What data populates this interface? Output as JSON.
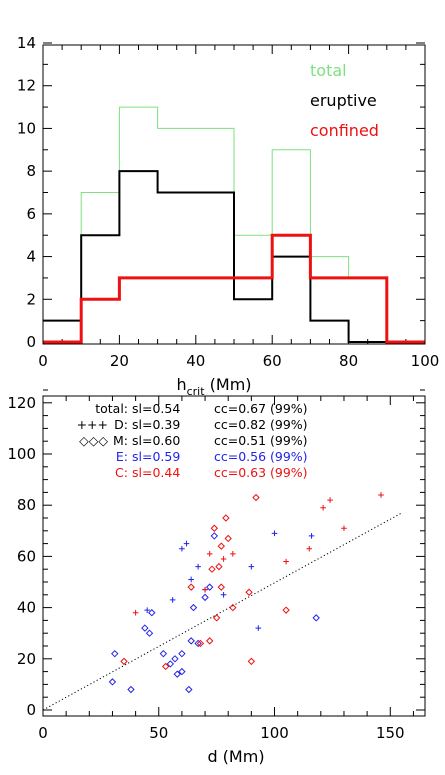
{
  "chart_data": [
    {
      "type": "bar",
      "histogram": true,
      "title": "",
      "xlabel": "h",
      "xlabel_sub": "crit",
      "xlabel_unit": "(Mm)",
      "ylabel": "",
      "xlim": [
        0,
        100
      ],
      "ylim": [
        0,
        14
      ],
      "xticks": [
        "0",
        "20",
        "40",
        "60",
        "80",
        "100"
      ],
      "yticks": [
        "0",
        "2",
        "4",
        "6",
        "8",
        "10",
        "12",
        "14"
      ],
      "bin_edges": [
        0,
        10,
        20,
        30,
        40,
        50,
        60,
        70,
        80,
        90,
        100
      ],
      "legend_position": "top-right",
      "series": [
        {
          "name": "total",
          "color": "#7ee07e",
          "values": [
            1,
            7,
            11,
            10,
            10,
            5,
            9,
            4,
            3,
            0
          ]
        },
        {
          "name": "eruptive",
          "color": "#000000",
          "values": [
            1,
            5,
            8,
            7,
            7,
            2,
            4,
            1,
            0,
            0
          ]
        },
        {
          "name": "confined",
          "color": "#ee1111",
          "values": [
            0,
            2,
            3,
            3,
            3,
            3,
            5,
            3,
            3,
            0
          ]
        }
      ]
    },
    {
      "type": "scatter",
      "title": "",
      "xlabel": "d (Mm)",
      "ylabel": "",
      "xlim": [
        0,
        165
      ],
      "ylim": [
        0,
        125
      ],
      "xticks": [
        "0",
        "50",
        "100",
        "150"
      ],
      "yticks": [
        "0",
        "20",
        "40",
        "60",
        "80",
        "100",
        "120"
      ],
      "legend_position": "top-left",
      "legend": [
        {
          "label": "total:",
          "symbol": "",
          "sl": "sl=0.54",
          "cc": "cc=0.67 (99%)",
          "color": "#000000"
        },
        {
          "label": "D:",
          "symbol": "+++",
          "sl": "sl=0.39",
          "cc": "cc=0.82 (99%)",
          "color": "#000000"
        },
        {
          "label": "M:",
          "symbol": "◇◇◇",
          "sl": "sl=0.60",
          "cc": "cc=0.51 (99%)",
          "color": "#000000"
        },
        {
          "label": "E:",
          "symbol": "",
          "sl": "sl=0.59",
          "cc": "cc=0.56 (99%)",
          "color": "#2222ee"
        },
        {
          "label": "C:",
          "symbol": "",
          "sl": "sl=0.44",
          "cc": "cc=0.63 (99%)",
          "color": "#ee1111"
        }
      ],
      "fit_line": {
        "x": [
          0,
          155
        ],
        "y": [
          0,
          77
        ],
        "style": "dotted",
        "color": "#000000"
      },
      "series": [
        {
          "name": "E",
          "marker": "diamond",
          "color": "#2222ee",
          "points": [
            [
              30,
              11
            ],
            [
              31,
              22
            ],
            [
              38,
              8
            ],
            [
              44,
              32
            ],
            [
              46,
              30
            ],
            [
              47,
              38
            ],
            [
              52,
              22
            ],
            [
              55,
              18
            ],
            [
              57,
              20
            ],
            [
              58,
              14
            ],
            [
              60,
              22
            ],
            [
              60,
              15
            ],
            [
              63,
              8
            ],
            [
              64,
              27
            ],
            [
              65,
              40
            ],
            [
              67,
              26
            ],
            [
              70,
              44
            ],
            [
              72,
              48
            ],
            [
              74,
              68
            ],
            [
              118,
              36
            ]
          ]
        },
        {
          "name": "E",
          "marker": "plus",
          "color": "#2222ee",
          "points": [
            [
              45,
              39
            ],
            [
              56,
              43
            ],
            [
              60,
              63
            ],
            [
              62,
              65
            ],
            [
              64,
              51
            ],
            [
              67,
              56
            ],
            [
              70,
              47
            ],
            [
              78,
              45
            ],
            [
              90,
              56
            ],
            [
              93,
              32
            ],
            [
              100,
              69
            ],
            [
              116,
              68
            ]
          ]
        },
        {
          "name": "C",
          "marker": "diamond",
          "color": "#ee1111",
          "points": [
            [
              35,
              19
            ],
            [
              53,
              17
            ],
            [
              64,
              48
            ],
            [
              68,
              26
            ],
            [
              72,
              27
            ],
            [
              73,
              55
            ],
            [
              74,
              71
            ],
            [
              75,
              36
            ],
            [
              76,
              56
            ],
            [
              77,
              64
            ],
            [
              77,
              48
            ],
            [
              79,
              75
            ],
            [
              80,
              67
            ],
            [
              82,
              40
            ],
            [
              89,
              46
            ],
            [
              90,
              19
            ],
            [
              92,
              83
            ],
            [
              105,
              39
            ]
          ]
        },
        {
          "name": "C",
          "marker": "plus",
          "color": "#ee1111",
          "points": [
            [
              40,
              38
            ],
            [
              70,
              47
            ],
            [
              72,
              61
            ],
            [
              78,
              59
            ],
            [
              82,
              61
            ],
            [
              105,
              58
            ],
            [
              115,
              63
            ],
            [
              121,
              79
            ],
            [
              124,
              82
            ],
            [
              130,
              71
            ],
            [
              146,
              84
            ]
          ]
        }
      ]
    }
  ]
}
